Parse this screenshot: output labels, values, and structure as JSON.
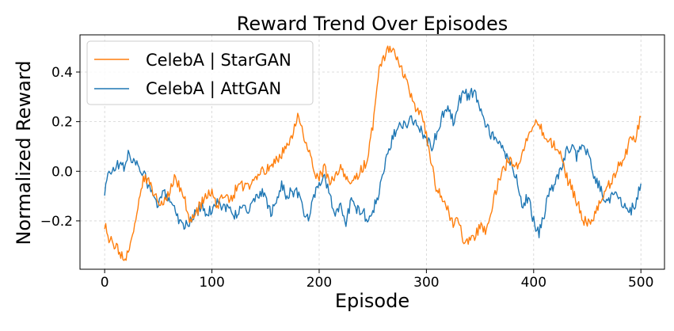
{
  "chart_data": {
    "type": "line",
    "title": "Reward Trend Over Episodes",
    "xlabel": "Episode",
    "ylabel": "Normalized Reward",
    "xlim": [
      -23,
      522
    ],
    "ylim": [
      -0.395,
      0.55
    ],
    "xticks": [
      0,
      100,
      200,
      300,
      400,
      500
    ],
    "yticks": [
      -0.2,
      0.0,
      0.2,
      0.4
    ],
    "ytick_labels": [
      "−0.2",
      "0.0",
      "0.2",
      "0.4"
    ],
    "grid": true,
    "legend_position": "top-left",
    "series": [
      {
        "name": "CelebA | StarGAN",
        "color": "#ff7f0e",
        "x": [
          0,
          5,
          10,
          15,
          18,
          22,
          25,
          28,
          32,
          36,
          40,
          45,
          50,
          55,
          60,
          65,
          70,
          75,
          80,
          85,
          90,
          95,
          100,
          105,
          110,
          115,
          120,
          125,
          130,
          135,
          140,
          145,
          150,
          155,
          160,
          165,
          170,
          175,
          180,
          183,
          186,
          190,
          195,
          200,
          205,
          210,
          215,
          220,
          225,
          230,
          235,
          240,
          245,
          250,
          255,
          258,
          262,
          265,
          270,
          275,
          280,
          285,
          290,
          295,
          300,
          305,
          310,
          315,
          320,
          325,
          330,
          335,
          340,
          345,
          350,
          355,
          360,
          365,
          370,
          375,
          380,
          385,
          388,
          392,
          395,
          400,
          405,
          410,
          415,
          420,
          425,
          430,
          435,
          440,
          445,
          450,
          455,
          460,
          465,
          470,
          475,
          480,
          485,
          490,
          495,
          500
        ],
        "values": [
          -0.22,
          -0.28,
          -0.3,
          -0.34,
          -0.35,
          -0.33,
          -0.28,
          -0.22,
          -0.13,
          -0.04,
          -0.03,
          -0.08,
          -0.12,
          -0.13,
          -0.08,
          -0.02,
          -0.06,
          -0.12,
          -0.21,
          -0.17,
          -0.13,
          -0.1,
          -0.08,
          -0.15,
          -0.09,
          -0.12,
          -0.1,
          -0.04,
          -0.07,
          -0.06,
          -0.02,
          0.0,
          -0.01,
          0.03,
          0.05,
          0.07,
          0.12,
          0.14,
          0.22,
          0.2,
          0.13,
          0.08,
          0.0,
          -0.03,
          0.02,
          -0.05,
          -0.02,
          0.01,
          -0.04,
          -0.03,
          -0.02,
          0.01,
          0.05,
          0.18,
          0.38,
          0.44,
          0.46,
          0.5,
          0.48,
          0.42,
          0.38,
          0.3,
          0.26,
          0.23,
          0.15,
          0.02,
          -0.08,
          -0.11,
          -0.15,
          -0.22,
          -0.2,
          -0.28,
          -0.28,
          -0.26,
          -0.22,
          -0.25,
          -0.16,
          -0.08,
          0.0,
          0.03,
          0.04,
          0.02,
          0.06,
          0.1,
          0.15,
          0.2,
          0.18,
          0.15,
          0.12,
          0.1,
          0.06,
          -0.02,
          -0.06,
          -0.12,
          -0.18,
          -0.22,
          -0.19,
          -0.15,
          -0.1,
          -0.06,
          -0.03,
          0.03,
          0.06,
          0.12,
          0.14,
          0.22
        ]
      },
      {
        "name": "CelebA | AttGAN",
        "color": "#1f77b4",
        "x": [
          0,
          3,
          6,
          10,
          15,
          18,
          22,
          25,
          30,
          35,
          40,
          45,
          50,
          55,
          60,
          65,
          70,
          75,
          80,
          85,
          90,
          95,
          100,
          105,
          110,
          115,
          120,
          125,
          130,
          135,
          140,
          145,
          150,
          155,
          160,
          165,
          170,
          175,
          180,
          185,
          190,
          195,
          200,
          205,
          210,
          215,
          220,
          225,
          230,
          235,
          240,
          245,
          250,
          255,
          260,
          265,
          270,
          275,
          280,
          285,
          290,
          295,
          300,
          305,
          310,
          315,
          320,
          325,
          330,
          335,
          340,
          345,
          350,
          355,
          360,
          365,
          370,
          375,
          380,
          385,
          390,
          395,
          400,
          405,
          410,
          415,
          420,
          425,
          430,
          435,
          440,
          445,
          450,
          455,
          460,
          465,
          470,
          475,
          480,
          485,
          490,
          495,
          500
        ],
        "values": [
          -0.1,
          -0.01,
          0.0,
          0.02,
          0.03,
          0.01,
          0.08,
          0.03,
          0.04,
          0.0,
          -0.05,
          -0.1,
          -0.14,
          -0.09,
          -0.1,
          -0.15,
          -0.2,
          -0.22,
          -0.2,
          -0.17,
          -0.14,
          -0.18,
          -0.15,
          -0.12,
          -0.14,
          -0.15,
          -0.18,
          -0.16,
          -0.14,
          -0.16,
          -0.12,
          -0.08,
          -0.11,
          -0.17,
          -0.13,
          -0.05,
          -0.1,
          -0.08,
          -0.09,
          -0.16,
          -0.2,
          -0.1,
          -0.05,
          -0.02,
          -0.1,
          -0.18,
          -0.14,
          -0.2,
          -0.12,
          -0.16,
          -0.15,
          -0.2,
          -0.16,
          -0.1,
          0.0,
          0.08,
          0.15,
          0.21,
          0.18,
          0.22,
          0.19,
          0.17,
          0.13,
          0.1,
          0.15,
          0.22,
          0.26,
          0.2,
          0.28,
          0.32,
          0.3,
          0.33,
          0.25,
          0.2,
          0.15,
          0.12,
          0.1,
          0.06,
          0.02,
          -0.05,
          -0.14,
          -0.1,
          -0.2,
          -0.25,
          -0.17,
          -0.08,
          -0.05,
          0.0,
          0.08,
          0.1,
          0.06,
          0.12,
          0.07,
          0.0,
          -0.05,
          -0.1,
          -0.12,
          -0.08,
          -0.11,
          -0.15,
          -0.16,
          -0.13,
          -0.05
        ]
      }
    ]
  }
}
